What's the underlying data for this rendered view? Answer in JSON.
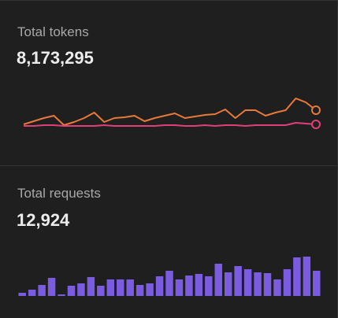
{
  "cards": [
    {
      "label": "Total tokens",
      "value": "8,173,295",
      "chart": {
        "type": "line",
        "series": [
          {
            "color": "#e8793a",
            "values": [
              7,
              11,
              15,
              18,
              6,
              10,
              15,
              22,
              10,
              15,
              16,
              18,
              11,
              15,
              18,
              21,
              15,
              17,
              19,
              20,
              26,
              15,
              25,
              25,
              18,
              22,
              25,
              40,
              35,
              25
            ]
          },
          {
            "color": "#e0407a",
            "values": [
              5,
              5,
              6,
              6,
              5,
              5,
              5,
              5,
              6,
              5,
              5,
              5,
              5,
              5,
              6,
              6,
              5,
              5,
              6,
              5,
              6,
              6,
              5,
              6,
              6,
              6,
              6,
              9,
              8,
              7
            ]
          }
        ]
      }
    },
    {
      "label": "Total requests",
      "value": "12,924",
      "chart": {
        "type": "bar",
        "color": "#7b5ce0",
        "values": [
          4,
          8,
          14,
          23,
          2,
          13,
          16,
          24,
          13,
          21,
          21,
          21,
          14,
          16,
          25,
          32,
          21,
          26,
          28,
          25,
          41,
          30,
          38,
          34,
          30,
          29,
          21,
          34,
          49,
          50,
          32
        ]
      }
    }
  ]
}
